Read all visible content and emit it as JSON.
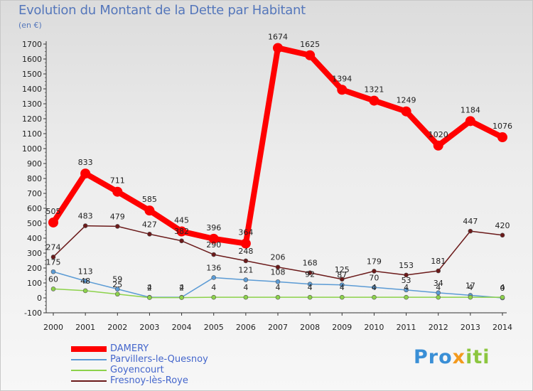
{
  "title": "Evolution du Montant de la Dette par Habitant",
  "unit": "(en €)",
  "logo": "Proxiti",
  "chart_data": {
    "type": "line",
    "title": "Evolution du Montant de la Dette par Habitant",
    "ylabel": "(en €)",
    "xlabel": "",
    "x": [
      "2000",
      "2001",
      "2002",
      "2003",
      "2004",
      "2005",
      "2006",
      "2007",
      "2008",
      "2009",
      "2010",
      "2011",
      "2012",
      "2013",
      "2014"
    ],
    "ylim": [
      -100,
      1700
    ],
    "yticks": [
      -100,
      0,
      100,
      200,
      300,
      400,
      500,
      600,
      700,
      800,
      900,
      1000,
      1100,
      1200,
      1300,
      1400,
      1500,
      1600,
      1700
    ],
    "grid": false,
    "legend_position": "bottom-left",
    "series": [
      {
        "name": "DAMERY",
        "color": "#ff0000",
        "values": [
          505,
          833,
          711,
          585,
          445,
          396,
          364,
          1674,
          1625,
          1394,
          1321,
          1249,
          1020,
          1184,
          1076
        ]
      },
      {
        "name": "Parvillers-le-Quesnoy",
        "color": "#5b9bd5",
        "values": [
          175,
          113,
          59,
          4,
          4,
          136,
          121,
          108,
          92,
          87,
          70,
          53,
          34,
          17,
          0
        ]
      },
      {
        "name": "Goyencourt",
        "color": "#8cd24a",
        "values": [
          60,
          48,
          25,
          2,
          2,
          4,
          4,
          4,
          4,
          4,
          4,
          4,
          4,
          4,
          4
        ]
      },
      {
        "name": "Fresnoy-lès-Roye",
        "color": "#6b1a1a",
        "values": [
          274,
          483,
          479,
          427,
          382,
          290,
          248,
          206,
          168,
          125,
          179,
          153,
          181,
          447,
          420
        ]
      }
    ]
  }
}
